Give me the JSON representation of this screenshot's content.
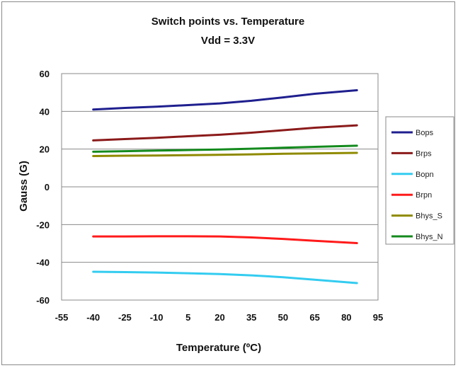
{
  "chart_data": {
    "type": "line",
    "title": "Switch points  vs. Temperature",
    "subtitle": "Vdd = 3.3V",
    "xlabel": "Temperature (ºC)",
    "ylabel": "Gauss (G)",
    "xlim": [
      -55,
      95
    ],
    "ylim": [
      -60,
      60
    ],
    "x_ticks": [
      "-55",
      "-40",
      "-25",
      "-10",
      "5",
      "20",
      "35",
      "50",
      "65",
      "80",
      "95"
    ],
    "y_ticks": [
      "60",
      "40",
      "20",
      "0",
      "-20",
      "-40",
      "-60"
    ],
    "grid": "horizontal",
    "legend_position": "right",
    "x": [
      -40,
      -25,
      -10,
      5,
      20,
      35,
      50,
      65,
      85
    ],
    "series": [
      {
        "name": "Bops",
        "color": "#1f1f8f",
        "values": [
          41,
          41.8,
          42.5,
          43.3,
          44.2,
          45.6,
          47.4,
          49.3,
          51.2
        ]
      },
      {
        "name": "Brps",
        "color": "#8b1a1a",
        "values": [
          24.6,
          25.3,
          26.0,
          26.8,
          27.6,
          28.7,
          30.0,
          31.3,
          32.6
        ]
      },
      {
        "name": "Bopn",
        "color": "#33ccf0",
        "values": [
          -45.0,
          -45.2,
          -45.4,
          -45.8,
          -46.2,
          -46.9,
          -47.9,
          -49.2,
          -51.0
        ]
      },
      {
        "name": "Brpn",
        "color": "#ff1a1a",
        "values": [
          -26.3,
          -26.3,
          -26.2,
          -26.2,
          -26.3,
          -26.8,
          -27.6,
          -28.6,
          -29.8
        ]
      },
      {
        "name": "Bhys_S",
        "color": "#8f8a00",
        "values": [
          16.3,
          16.5,
          16.6,
          16.8,
          17.0,
          17.2,
          17.5,
          17.7,
          18.0
        ]
      },
      {
        "name": "Bhys_N",
        "color": "#138a1d",
        "values": [
          18.6,
          18.9,
          19.2,
          19.5,
          19.8,
          20.2,
          20.7,
          21.2,
          21.8
        ]
      }
    ],
    "legend_labels": [
      "Bops",
      "Brps",
      "Bopn",
      "Brpn",
      "Bhys_S",
      "Bhys_N"
    ]
  }
}
